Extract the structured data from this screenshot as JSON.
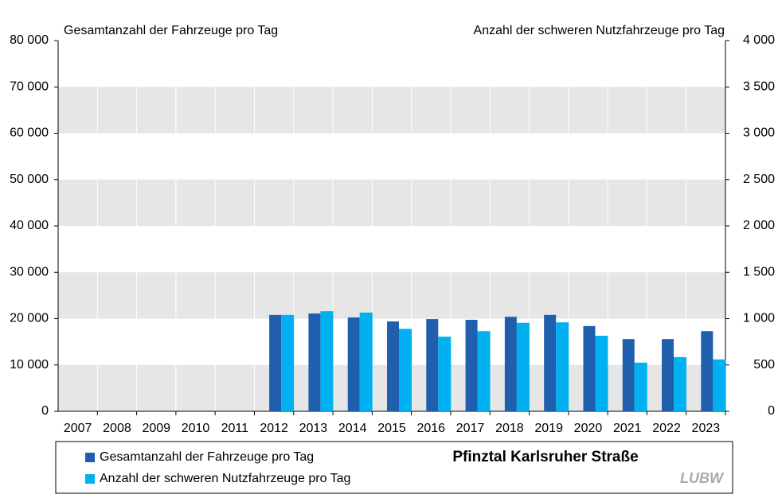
{
  "chart_data": {
    "type": "bar",
    "title": "Pfinztal Karlsruher Straße",
    "y_label": "Gesamtanzahl der Fahrzeuge pro Tag",
    "y2_label": "Anzahl der schweren Nutzfahrzeuge pro Tag",
    "logo": "LUBW",
    "categories": [
      "2007",
      "2008",
      "2009",
      "2010",
      "2011",
      "2012",
      "2013",
      "2014",
      "2015",
      "2016",
      "2017",
      "2018",
      "2019",
      "2020",
      "2021",
      "2022",
      "2023"
    ],
    "series": [
      {
        "name": "Gesamtanzahl der Fahrzeuge pro Tag",
        "color": "#1f5fad",
        "values": [
          null,
          null,
          null,
          null,
          null,
          20800,
          21100,
          20250,
          19400,
          19900,
          19750,
          20400,
          20800,
          18400,
          15600,
          15600,
          17300
        ]
      },
      {
        "name": "Anzahl der schweren Nutzfahrzeuge pro Tag",
        "color": "#00b0f0",
        "axis": "y2",
        "values": [
          null,
          null,
          null,
          null,
          null,
          1040,
          1080,
          1065,
          890,
          805,
          865,
          955,
          960,
          815,
          525,
          585,
          560
        ]
      }
    ],
    "ylim": [
      0,
      80000
    ],
    "yticks": [
      0,
      {
        "value": 10000,
        "label": "10 000"
      },
      {
        "value": 20000,
        "label": "20 000"
      },
      {
        "value": 30000,
        "label": "30 000"
      },
      {
        "value": 40000,
        "label": "40 000"
      },
      {
        "value": 50000,
        "label": "50 000"
      },
      {
        "value": 60000,
        "label": "60 000"
      },
      {
        "value": 70000,
        "label": "70 000"
      },
      {
        "value": 80000,
        "label": "80 000"
      }
    ],
    "y2lim": [
      0,
      4000
    ],
    "y2ticks": [
      0,
      500,
      {
        "value": 1000,
        "label": "1 000"
      },
      {
        "value": 1500,
        "label": "1 500"
      },
      {
        "value": 2000,
        "label": "2 000"
      },
      {
        "value": 2500,
        "label": "2 500"
      },
      {
        "value": 3000,
        "label": "3 000"
      },
      {
        "value": 3500,
        "label": "3 500"
      },
      {
        "value": 4000,
        "label": "4 000"
      }
    ],
    "grid": true,
    "legend": "bottom"
  }
}
